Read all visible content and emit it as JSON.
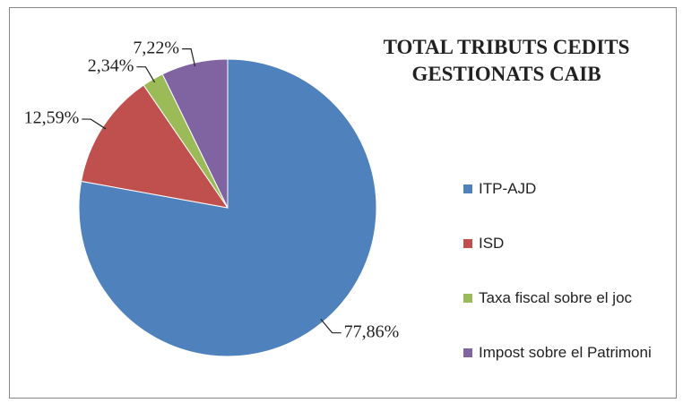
{
  "chart_data": {
    "type": "pie",
    "title": "TOTAL TRIBUTS CEDITS GESTIONATS CAIB",
    "categories": [
      "ITP-AJD",
      "ISD",
      "Taxa fiscal sobre el joc",
      "Impost sobre el Patrimoni"
    ],
    "values": [
      77.86,
      12.59,
      2.34,
      7.22
    ],
    "value_labels": [
      "77,86%",
      "12,59%",
      "2,34%",
      "7,22%"
    ],
    "colors": [
      "#4f81bd",
      "#c0504d",
      "#9bbb59",
      "#8064a2"
    ],
    "legend": "right"
  }
}
